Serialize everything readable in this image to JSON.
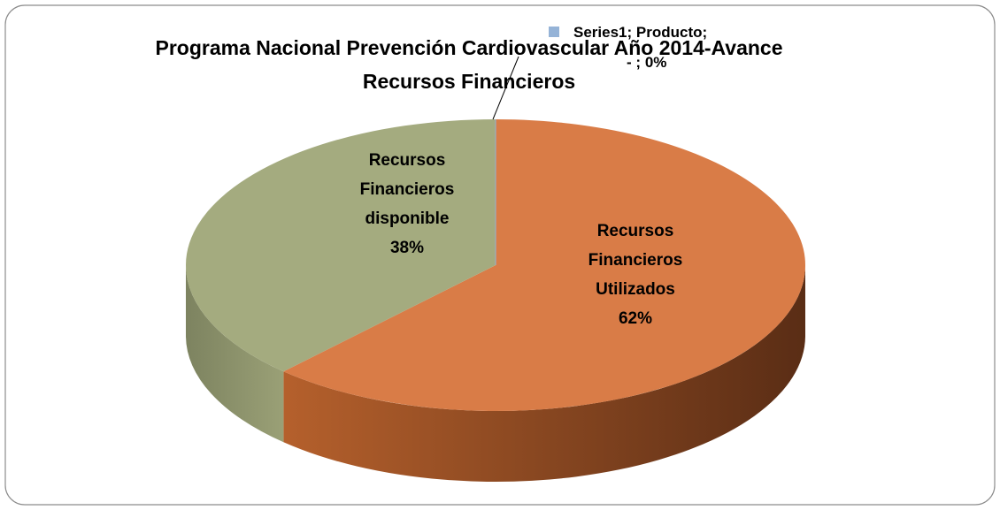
{
  "chart_data": {
    "type": "pie3d",
    "title": "Programa Nacional Prevención Cardiovascular Año 2014-Avance Recursos Financieros",
    "series_name": "Series1",
    "categories": [
      "Recursos Financieros Utilizados",
      "Recursos Financieros disponible",
      "Producto"
    ],
    "values": [
      62,
      38,
      0
    ],
    "value_labels": [
      "62%",
      "38%",
      "0%"
    ],
    "raw_value_text": "-",
    "label_separator": ";",
    "colors": [
      "#d97c47",
      "#a4ab7f",
      "#95b3d7"
    ],
    "side_colors": [
      "#7a4020",
      "#8a9068",
      "#7f9bbf"
    ]
  }
}
